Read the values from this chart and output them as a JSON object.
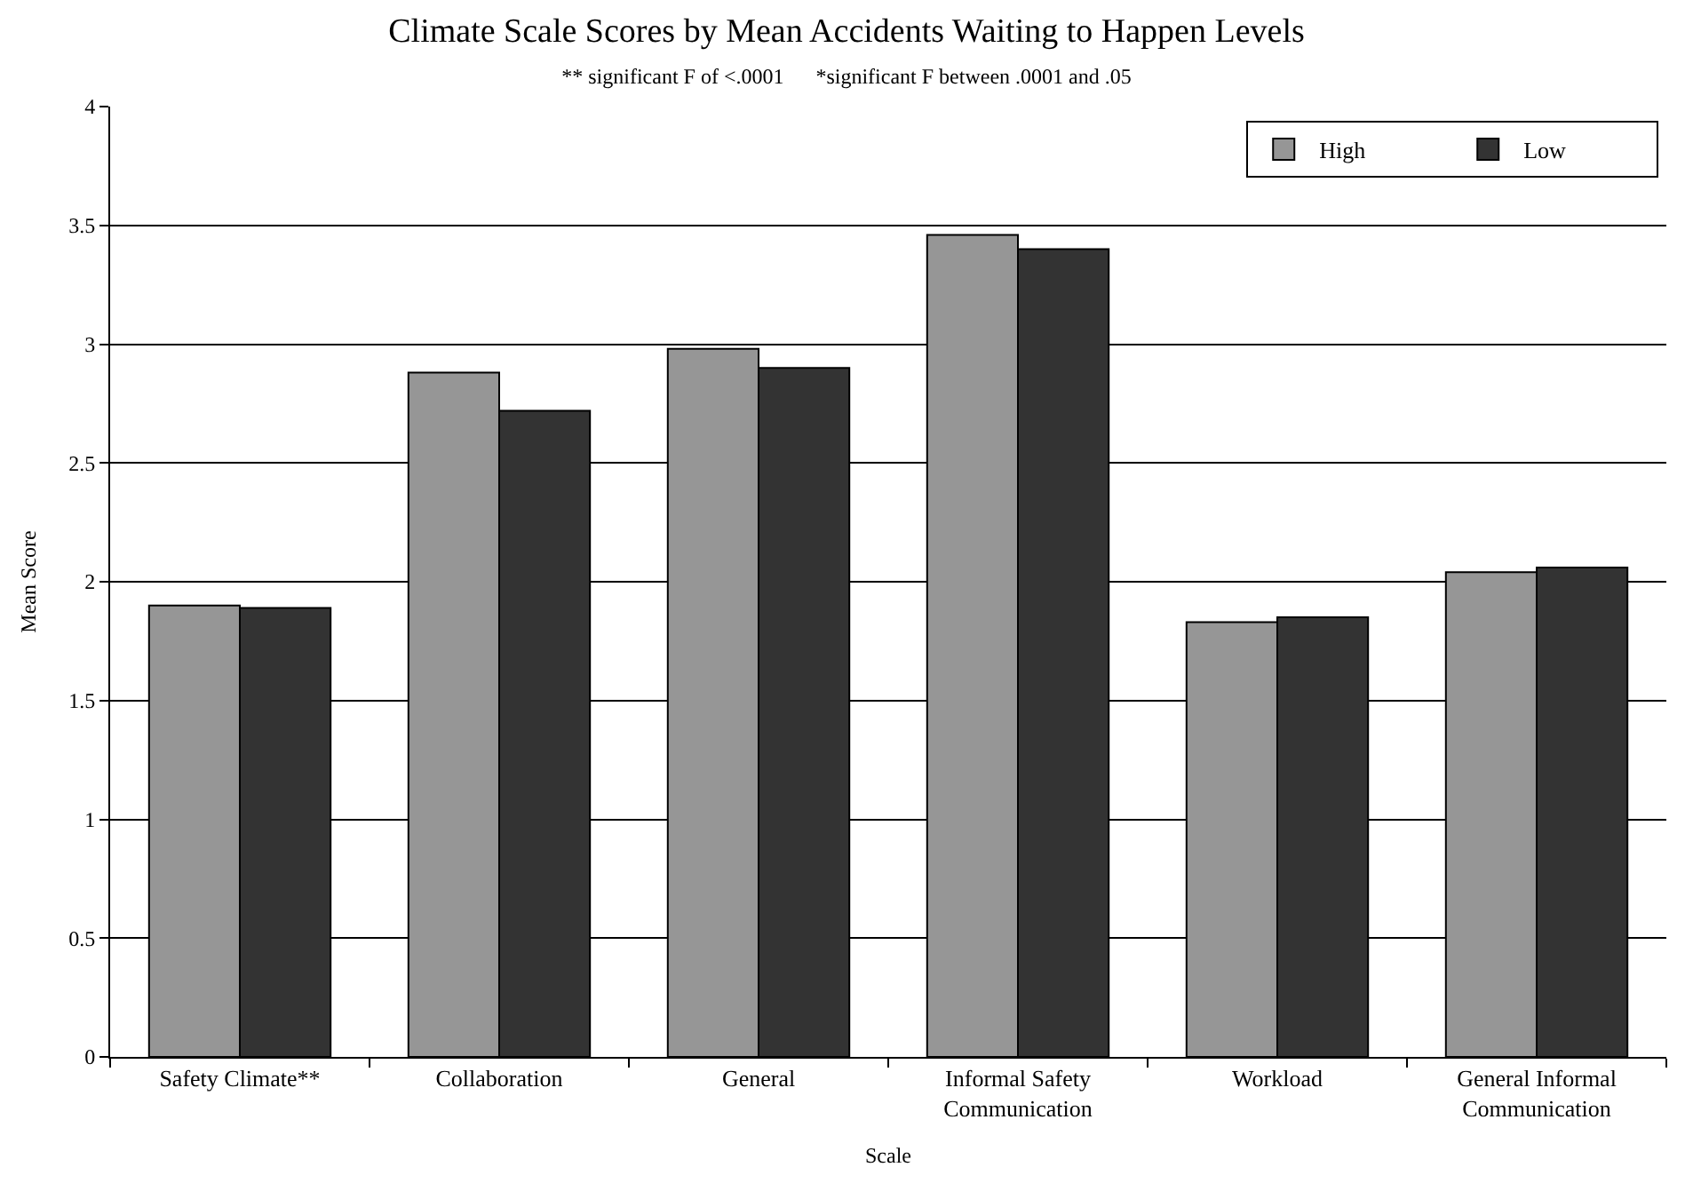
{
  "chart_data": {
    "type": "bar",
    "title": "Climate Scale Scores by Mean Accidents Waiting to Happen Levels",
    "subtitle": "** significant F of <.0001      *significant F between .0001 and .05",
    "xlabel": "Scale",
    "ylabel": "Mean Score",
    "categories": [
      "Safety Climate**",
      "Collaboration",
      "General",
      "Informal Safety\nCommunication",
      "Workload",
      "General Informal\nCommunication"
    ],
    "series": [
      {
        "name": "High",
        "color": "#969696",
        "values": [
          1.9,
          2.88,
          2.98,
          3.46,
          1.83,
          2.04
        ]
      },
      {
        "name": "Low",
        "color": "#333333",
        "values": [
          1.89,
          2.72,
          2.9,
          3.4,
          1.85,
          2.06
        ]
      }
    ],
    "ylim": [
      0,
      4
    ],
    "yticks": [
      0,
      0.5,
      1,
      1.5,
      2,
      2.5,
      3,
      3.5,
      4
    ],
    "grid": "y",
    "legend": "top right"
  }
}
